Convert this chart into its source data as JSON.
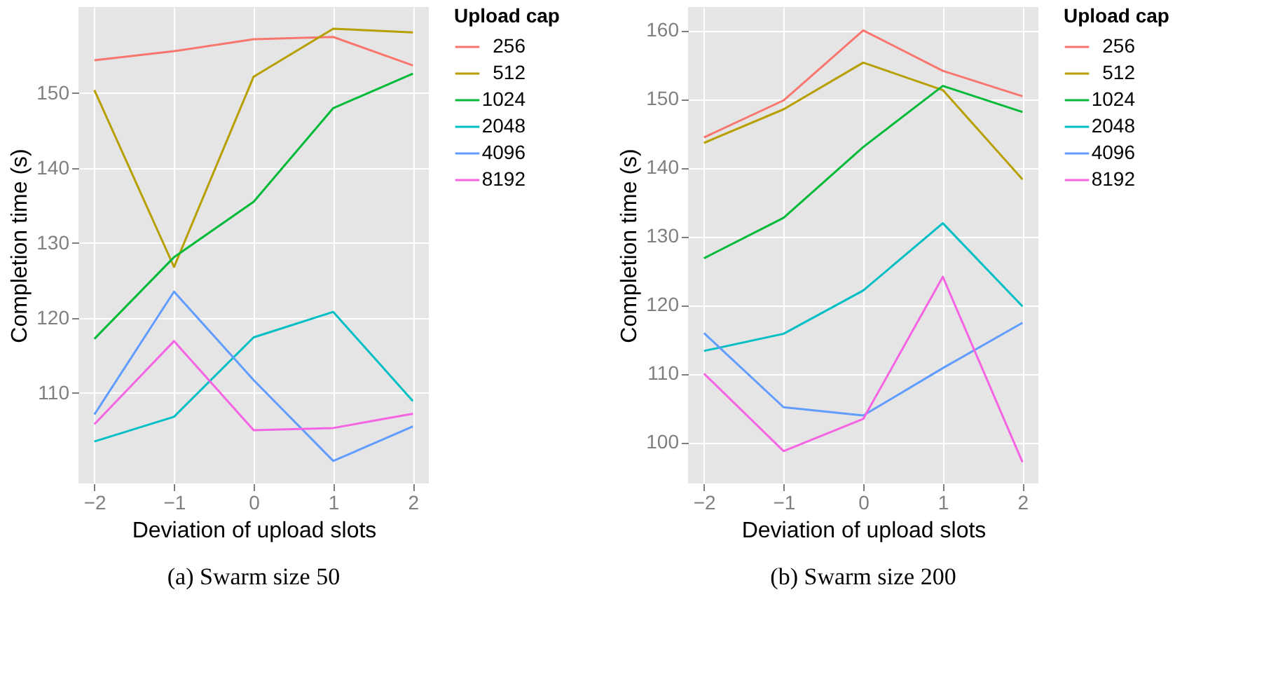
{
  "chart_data": [
    {
      "type": "line",
      "xlabel": "Deviation of upload slots",
      "ylabel": "Completion time (s)",
      "legend_title": "Upload cap",
      "annotations": [
        "(a) Swarm size 50"
      ],
      "x": [
        -2,
        -1,
        0,
        1,
        2
      ],
      "xlim": [
        -2.2,
        2.2
      ],
      "xticks": [
        -2,
        -1,
        0,
        1,
        2
      ],
      "ylim": [
        97.9,
        161.5
      ],
      "yticks": [
        110,
        120,
        130,
        140,
        150
      ],
      "grid": true,
      "legend": "right",
      "marker": "none",
      "line_style": "solid",
      "series": [
        {
          "name": "256",
          "color": "#f8766d",
          "values": [
            154.4,
            155.6,
            157.2,
            157.5,
            153.7
          ]
        },
        {
          "name": "512",
          "color": "#b79f00",
          "values": [
            150.4,
            126.8,
            152.2,
            158.6,
            158.1
          ]
        },
        {
          "name": "1024",
          "color": "#00ba38",
          "values": [
            117.2,
            128.1,
            135.5,
            148.0,
            152.6
          ]
        },
        {
          "name": "2048",
          "color": "#00bfc4",
          "values": [
            103.5,
            106.8,
            117.4,
            120.8,
            108.9
          ]
        },
        {
          "name": "4096",
          "color": "#619cff",
          "values": [
            107.1,
            123.5,
            111.7,
            100.9,
            105.5
          ]
        },
        {
          "name": "8192",
          "color": "#f564e3",
          "values": [
            105.8,
            116.9,
            105.0,
            105.3,
            107.2
          ]
        }
      ]
    },
    {
      "type": "line",
      "xlabel": "Deviation of upload slots",
      "ylabel": "Completion time (s)",
      "legend_title": "Upload cap",
      "annotations": [
        "(b) Swarm size 200"
      ],
      "x": [
        -2,
        -1,
        0,
        1,
        2
      ],
      "xlim": [
        -2.2,
        2.2
      ],
      "xticks": [
        -2,
        -1,
        0,
        1,
        2
      ],
      "ylim": [
        94.0,
        163.4
      ],
      "yticks": [
        100,
        110,
        120,
        130,
        140,
        150,
        160
      ],
      "grid": true,
      "legend": "right",
      "marker": "none",
      "line_style": "solid",
      "series": [
        {
          "name": "256",
          "color": "#f8766d",
          "values": [
            144.4,
            149.8,
            160.0,
            154.1,
            150.4
          ]
        },
        {
          "name": "512",
          "color": "#b79f00",
          "values": [
            143.6,
            148.5,
            155.3,
            151.3,
            138.3
          ]
        },
        {
          "name": "1024",
          "color": "#00ba38",
          "values": [
            126.8,
            132.7,
            143.0,
            151.9,
            148.1
          ]
        },
        {
          "name": "2048",
          "color": "#00bfc4",
          "values": [
            113.3,
            115.8,
            122.1,
            131.9,
            119.8
          ]
        },
        {
          "name": "4096",
          "color": "#619cff",
          "values": [
            115.9,
            105.1,
            103.9,
            110.8,
            117.4
          ]
        },
        {
          "name": "8192",
          "color": "#f564e3",
          "values": [
            110.0,
            98.7,
            103.4,
            124.1,
            97.1
          ]
        }
      ]
    }
  ]
}
